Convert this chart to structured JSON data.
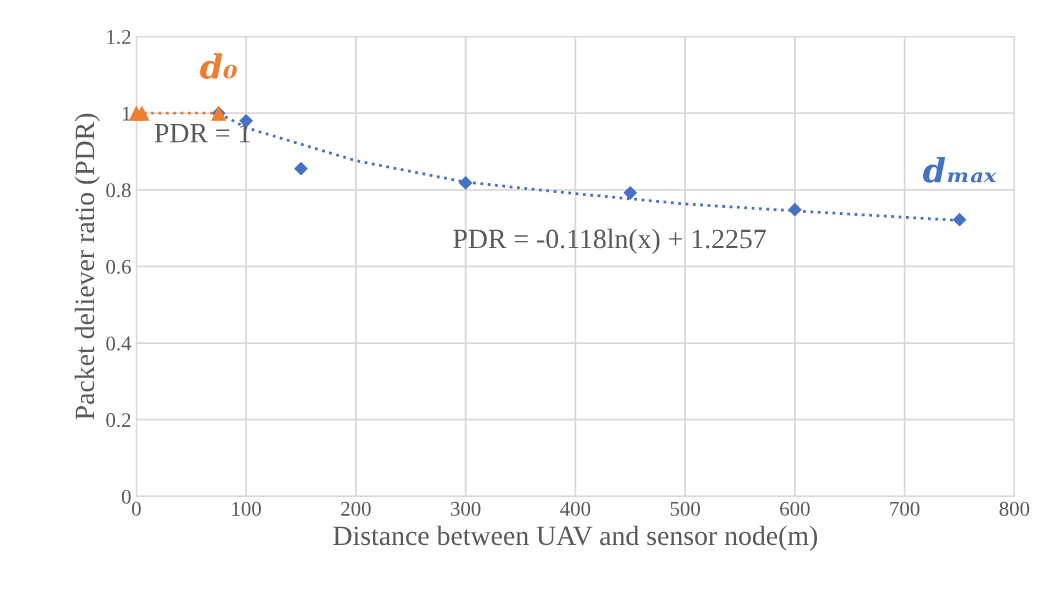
{
  "chart_data": {
    "type": "scatter",
    "xlabel": "Distance between UAV and sensor node(m)",
    "ylabel": "Packet deliever ratio (PDR)",
    "series": [
      {
        "color": "#4472c4",
        "marker": "diamond",
        "x": [
          75,
          100,
          150,
          300,
          450,
          600,
          750
        ],
        "values": [
          1.0,
          0.98,
          0.855,
          0.818,
          0.792,
          0.748,
          0.722
        ]
      },
      {
        "color": "#ed7d31",
        "marker": "triangle",
        "x": [
          0,
          5,
          75
        ],
        "values": [
          1.0,
          1.0,
          1.0
        ]
      },
      {
        "color": "#ed7d31",
        "marker": "none",
        "type": "line",
        "line_style": "dotted",
        "x": [
          0,
          75
        ],
        "values": [
          1.0,
          1.0
        ]
      },
      {
        "color": "#4472c4",
        "marker": "none",
        "type": "line",
        "line_style": "dotted",
        "x": [
          75,
          100,
          200,
          300,
          400,
          500,
          600,
          750
        ],
        "values": [
          1.0,
          0.962,
          0.876,
          0.82,
          0.79,
          0.763,
          0.745,
          0.72
        ]
      }
    ],
    "xlim": [
      0,
      800
    ],
    "xticks": [
      0,
      100,
      200,
      300,
      400,
      500,
      600,
      700,
      800
    ],
    "ylim": [
      0,
      1.2
    ],
    "yticks": [
      0,
      0.2,
      0.4,
      0.6,
      0.8,
      1,
      1.2
    ],
    "grid": true,
    "legend": false,
    "annotations": [
      {
        "text": "d₀",
        "x": 75,
        "y": 1.0
      },
      {
        "text": "dₘₐₓ",
        "x": 750,
        "y": 0.722
      },
      "PDR = 1",
      "PDR = -0.118ln(x) + 1.2257"
    ]
  }
}
